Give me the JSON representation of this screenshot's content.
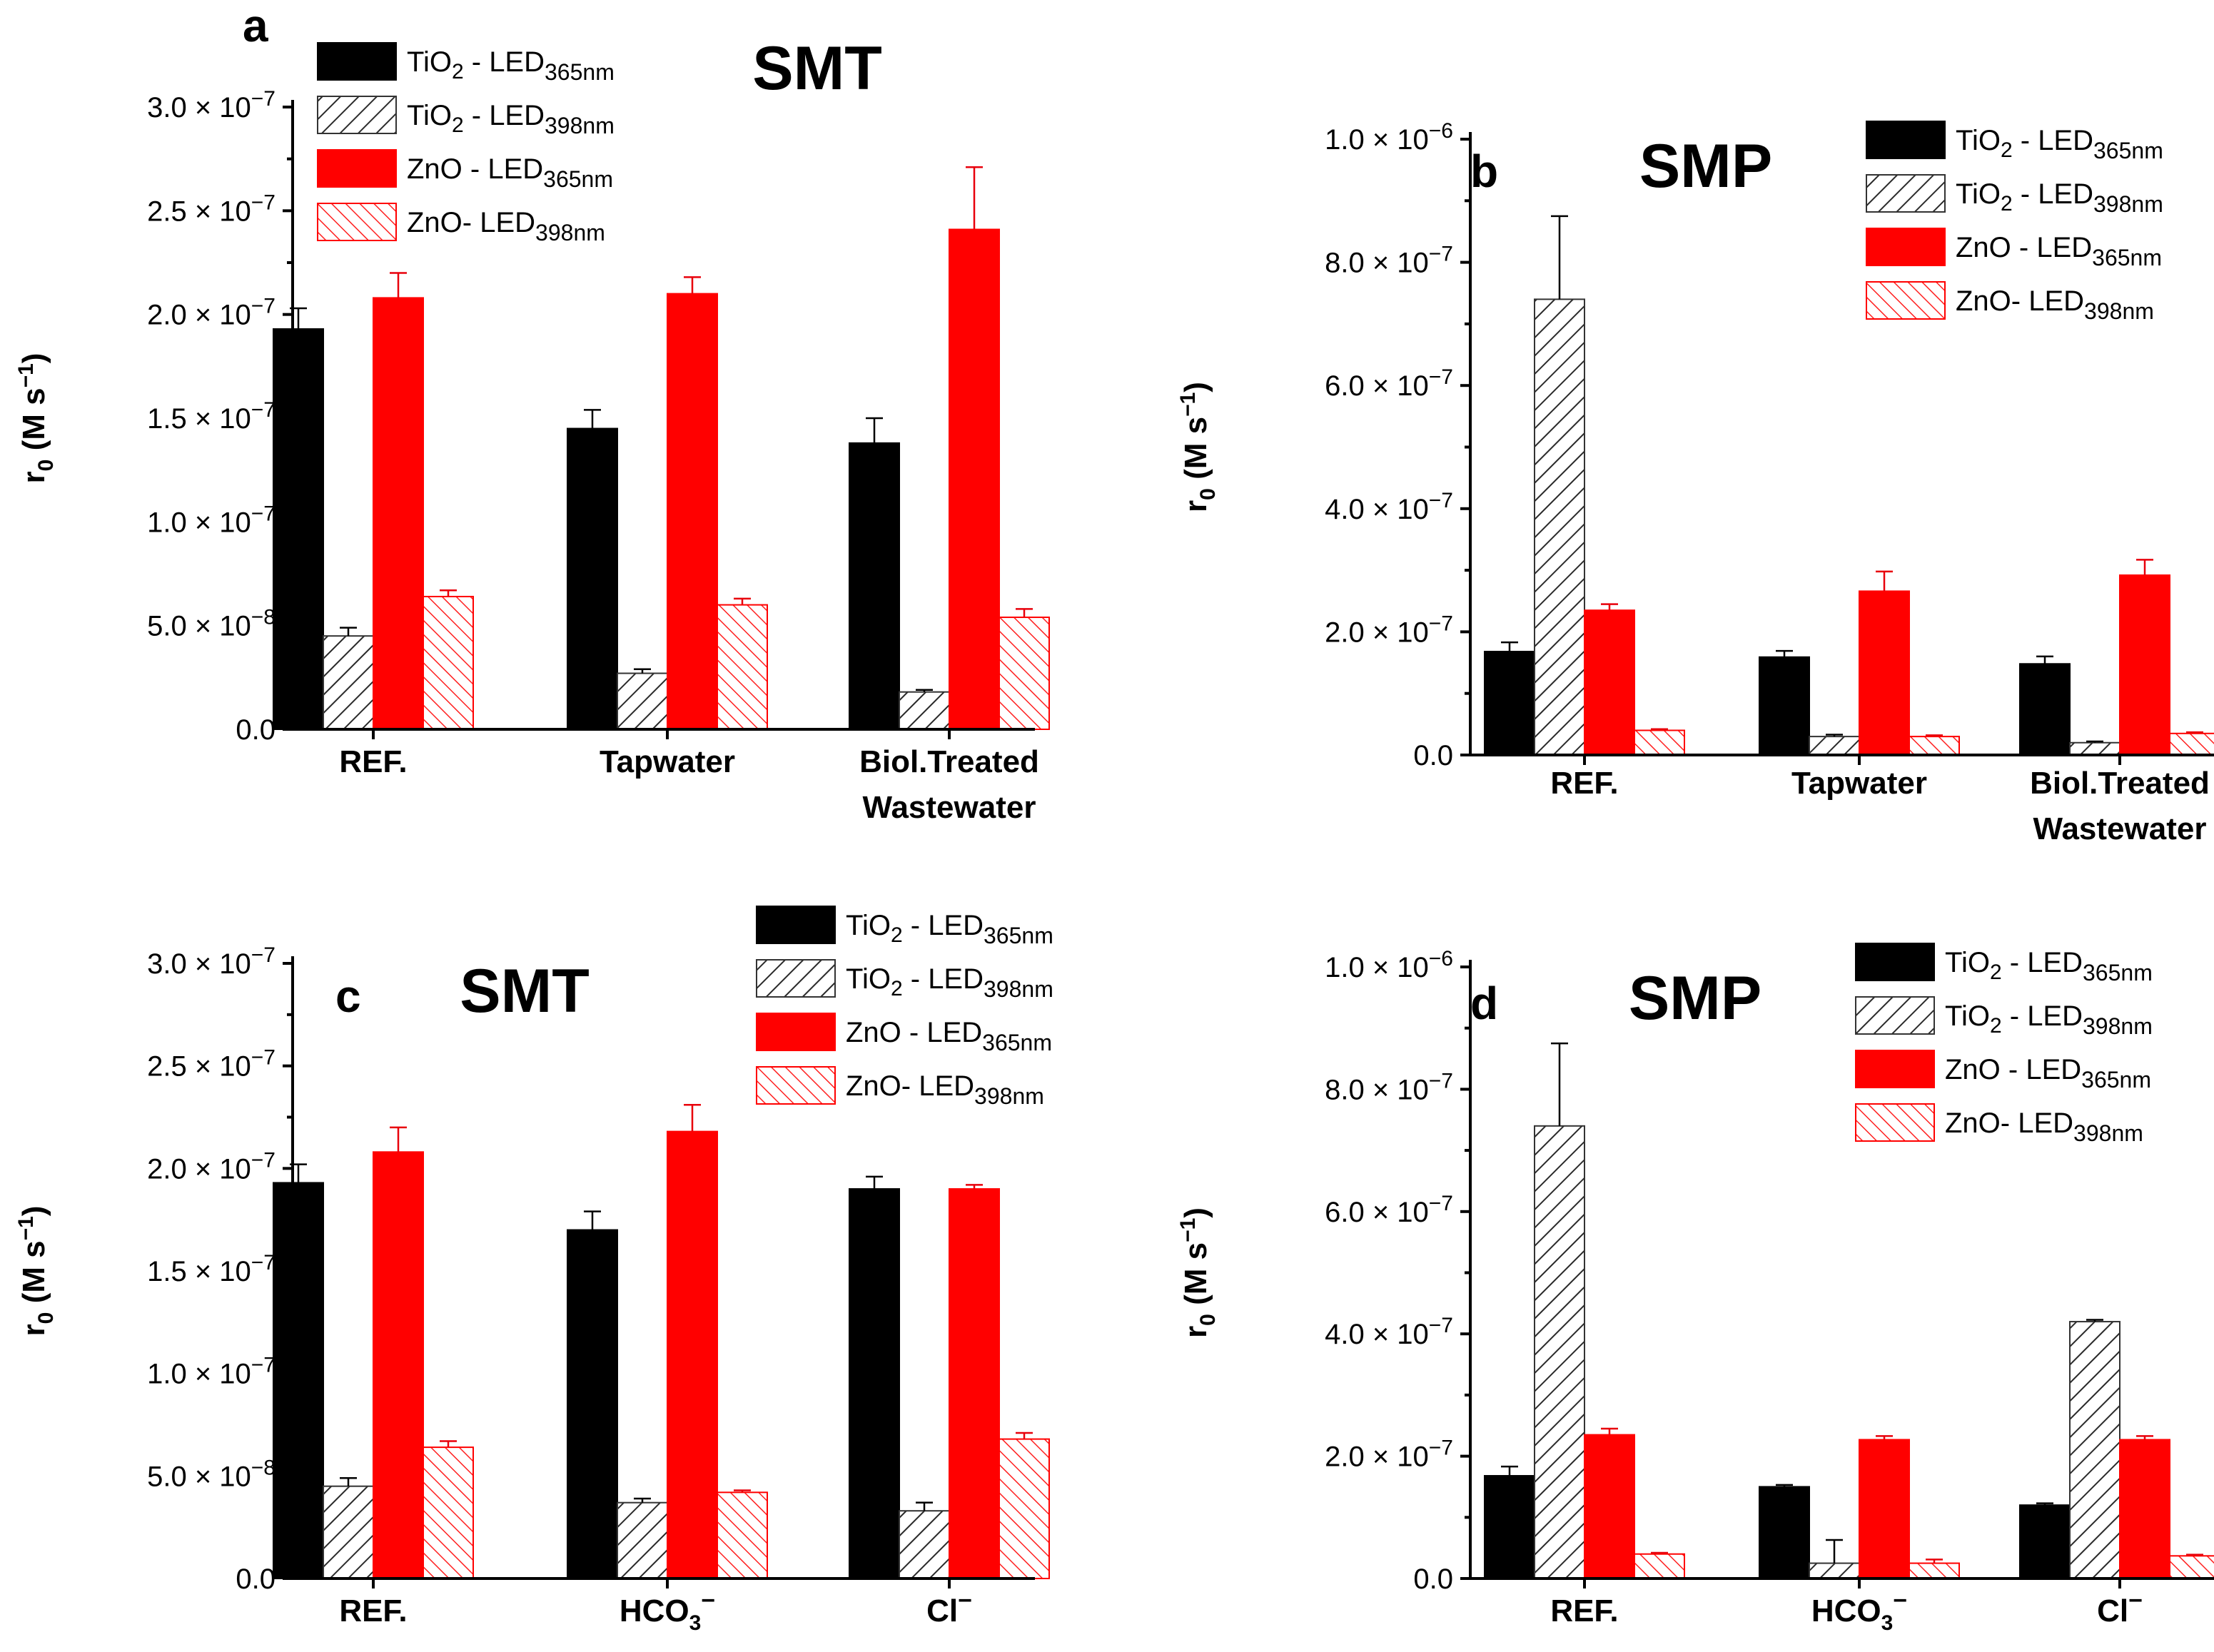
{
  "figure": {
    "colors": {
      "tio2_365": "#000000",
      "tio2_398_stroke": "#333333",
      "zno_365": "#ff0000",
      "zno_398_stroke": "#ff0000",
      "error_bar_black": "#000000",
      "error_bar_red": "#e8000b"
    }
  },
  "chart_data": [
    {
      "type": "bar",
      "panel": "a",
      "title": "SMT",
      "ylabel": "r0 (M s−1)",
      "ylim": [
        0,
        3e-07
      ],
      "ytick_values": [
        0,
        5e-08,
        1e-07,
        1.5e-07,
        2e-07,
        2.5e-07,
        3e-07
      ],
      "ytick_labels": [
        {
          "mant": "0.0"
        },
        {
          "mant": "5.0 × 10",
          "exp": "−8"
        },
        {
          "mant": "1.0 × 10",
          "exp": "−7"
        },
        {
          "mant": "1.5 × 10",
          "exp": "−7"
        },
        {
          "mant": "2.0 × 10",
          "exp": "−7"
        },
        {
          "mant": "2.5 × 10",
          "exp": "−7"
        },
        {
          "mant": "3.0 × 10",
          "exp": "−7"
        }
      ],
      "categories": [
        [
          "REF."
        ],
        [
          "Tapwater"
        ],
        [
          "Biol.Treated",
          "Wastewater"
        ]
      ],
      "legend_position": "top-left",
      "series": [
        {
          "name": "TiO2 - LED365nm",
          "label": {
            "a": "TiO",
            "b": "2",
            "c": " - LED",
            "d": "365nm"
          },
          "style": "tio2_365",
          "values": [
            1.93e-07,
            1.45e-07,
            1.38e-07
          ],
          "errors": [
            1e-08,
            9e-09,
            1.2e-08
          ]
        },
        {
          "name": "TiO2 - LED398nm",
          "label": {
            "a": "TiO",
            "b": "2",
            "c": " - LED",
            "d": "398nm"
          },
          "style": "tio2_398",
          "values": [
            4.5e-08,
            2.7e-08,
            1.8e-08
          ],
          "errors": [
            4e-09,
            2e-09,
            1e-09
          ]
        },
        {
          "name": "ZnO - LED365nm",
          "label": {
            "a": "ZnO - LED",
            "d": "365nm"
          },
          "style": "zno_365",
          "values": [
            2.08e-07,
            2.1e-07,
            2.41e-07
          ],
          "errors": [
            1.2e-08,
            8e-09,
            3e-08
          ]
        },
        {
          "name": "ZnO- LED398nm",
          "label": {
            "a": "ZnO- LED",
            "d": "398nm"
          },
          "style": "zno_398",
          "values": [
            6.4e-08,
            6e-08,
            5.4e-08
          ],
          "errors": [
            3e-09,
            3e-09,
            4e-09
          ]
        }
      ]
    },
    {
      "type": "bar",
      "panel": "b",
      "title": "SMP",
      "ylabel": "r0 (M s−1)",
      "ylim": [
        0,
        1e-06
      ],
      "ytick_values": [
        0,
        2e-07,
        4e-07,
        6e-07,
        8e-07,
        1e-06
      ],
      "ytick_labels": [
        {
          "mant": "0.0"
        },
        {
          "mant": "2.0 × 10",
          "exp": "−7"
        },
        {
          "mant": "4.0 × 10",
          "exp": "−7"
        },
        {
          "mant": "6.0 × 10",
          "exp": "−7"
        },
        {
          "mant": "8.0 × 10",
          "exp": "−7"
        },
        {
          "mant": "1.0 × 10",
          "exp": "−6"
        }
      ],
      "categories": [
        [
          "REF."
        ],
        [
          "Tapwater"
        ],
        [
          "Biol.Treated",
          "Wastewater"
        ]
      ],
      "legend_position": "top-right",
      "series": [
        {
          "name": "TiO2 - LED365nm",
          "label": {
            "a": "TiO",
            "b": "2",
            "c": " - LED",
            "d": "365nm"
          },
          "style": "tio2_365",
          "values": [
            1.68e-07,
            1.59e-07,
            1.48e-07
          ],
          "errors": [
            1.5e-08,
            1e-08,
            1.2e-08
          ]
        },
        {
          "name": "TiO2 - LED398nm",
          "label": {
            "a": "TiO",
            "b": "2",
            "c": " - LED",
            "d": "398nm"
          },
          "style": "tio2_398",
          "values": [
            7.4e-07,
            3e-08,
            2e-08
          ],
          "errors": [
            1.35e-07,
            3e-09,
            2e-09
          ]
        },
        {
          "name": "ZnO - LED365nm",
          "label": {
            "a": "ZnO - LED",
            "d": "365nm"
          },
          "style": "zno_365",
          "values": [
            2.35e-07,
            2.66e-07,
            2.92e-07
          ],
          "errors": [
            1e-08,
            3.2e-08,
            2.5e-08
          ]
        },
        {
          "name": "ZnO- LED398nm",
          "label": {
            "a": "ZnO- LED",
            "d": "398nm"
          },
          "style": "zno_398",
          "values": [
            4e-08,
            3e-08,
            3.5e-08
          ],
          "errors": [
            2e-09,
            2e-09,
            2e-09
          ]
        }
      ]
    },
    {
      "type": "bar",
      "panel": "c",
      "title": "SMT",
      "ylabel": "r0 (M s−1)",
      "ylim": [
        0,
        3e-07
      ],
      "ytick_values": [
        0,
        5e-08,
        1e-07,
        1.5e-07,
        2e-07,
        2.5e-07,
        3e-07
      ],
      "ytick_labels": [
        {
          "mant": "0.0"
        },
        {
          "mant": "5.0 × 10",
          "exp": "−8"
        },
        {
          "mant": "1.0 × 10",
          "exp": "−7"
        },
        {
          "mant": "1.5 × 10",
          "exp": "−7"
        },
        {
          "mant": "2.0 × 10",
          "exp": "−7"
        },
        {
          "mant": "2.5 × 10",
          "exp": "−7"
        },
        {
          "mant": "3.0 × 10",
          "exp": "−7"
        }
      ],
      "categories": [
        [
          "REF."
        ],
        [
          "HCO3−"
        ],
        [
          "Cl−"
        ]
      ],
      "legend_position": "top-right",
      "series": [
        {
          "name": "TiO2 - LED365nm",
          "label": {
            "a": "TiO",
            "b": "2",
            "c": " - LED",
            "d": "365nm"
          },
          "style": "tio2_365",
          "values": [
            1.93e-07,
            1.7e-07,
            1.9e-07
          ],
          "errors": [
            9e-09,
            9e-09,
            6e-09
          ]
        },
        {
          "name": "TiO2 - LED398nm",
          "label": {
            "a": "TiO",
            "b": "2",
            "c": " - LED",
            "d": "398nm"
          },
          "style": "tio2_398",
          "values": [
            4.5e-08,
            3.7e-08,
            3.3e-08
          ],
          "errors": [
            4e-09,
            2e-09,
            4e-09
          ]
        },
        {
          "name": "ZnO - LED365nm",
          "label": {
            "a": "ZnO - LED",
            "d": "365nm"
          },
          "style": "zno_365",
          "values": [
            2.08e-07,
            2.18e-07,
            1.9e-07
          ],
          "errors": [
            1.2e-08,
            1.3e-08,
            2e-09
          ]
        },
        {
          "name": "ZnO- LED398nm",
          "label": {
            "a": "ZnO- LED",
            "d": "398nm"
          },
          "style": "zno_398",
          "values": [
            6.4e-08,
            4.2e-08,
            6.8e-08
          ],
          "errors": [
            3e-09,
            1e-09,
            3e-09
          ]
        }
      ]
    },
    {
      "type": "bar",
      "panel": "d",
      "title": "SMP",
      "ylabel": "r0 (M s−1)",
      "ylim": [
        0,
        1e-06
      ],
      "ytick_values": [
        0,
        2e-07,
        4e-07,
        6e-07,
        8e-07,
        1e-06
      ],
      "ytick_labels": [
        {
          "mant": "0.0"
        },
        {
          "mant": "2.0 × 10",
          "exp": "−7"
        },
        {
          "mant": "4.0 × 10",
          "exp": "−7"
        },
        {
          "mant": "6.0 × 10",
          "exp": "−7"
        },
        {
          "mant": "8.0 × 10",
          "exp": "−7"
        },
        {
          "mant": "1.0 × 10",
          "exp": "−6"
        }
      ],
      "categories": [
        [
          "REF."
        ],
        [
          "HCO3−"
        ],
        [
          "Cl−"
        ]
      ],
      "legend_position": "top-right",
      "series": [
        {
          "name": "TiO2 - LED365nm",
          "label": {
            "a": "TiO",
            "b": "2",
            "c": " - LED",
            "d": "365nm"
          },
          "style": "tio2_365",
          "values": [
            1.68e-07,
            1.5e-07,
            1.2e-07
          ],
          "errors": [
            1.5e-08,
            3e-09,
            3e-09
          ]
        },
        {
          "name": "TiO2 - LED398nm",
          "label": {
            "a": "TiO",
            "b": "2",
            "c": " - LED",
            "d": "398nm"
          },
          "style": "tio2_398",
          "values": [
            7.4e-07,
            2.5e-08,
            4.2e-07
          ],
          "errors": [
            1.35e-07,
            3.8e-08,
            3e-09
          ]
        },
        {
          "name": "ZnO - LED365nm",
          "label": {
            "a": "ZnO - LED",
            "d": "365nm"
          },
          "style": "zno_365",
          "values": [
            2.35e-07,
            2.27e-07,
            2.27e-07
          ],
          "errors": [
            1e-08,
            6e-09,
            6e-09
          ]
        },
        {
          "name": "ZnO- LED398nm",
          "label": {
            "a": "ZnO- LED",
            "d": "398nm"
          },
          "style": "zno_398",
          "values": [
            4e-08,
            2.5e-08,
            3.7e-08
          ],
          "errors": [
            2e-09,
            6e-09,
            2e-09
          ]
        }
      ]
    }
  ]
}
